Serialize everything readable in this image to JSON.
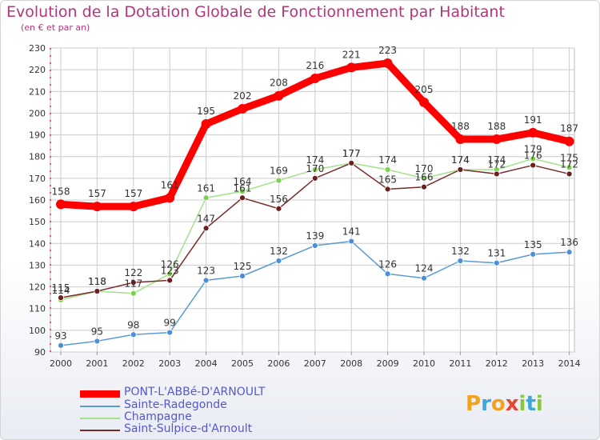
{
  "title": "Evolution de la Dotation Globale de Fonctionnement par Habitant",
  "subtitle": "(en € et par an)",
  "logo": {
    "letters": [
      "P",
      "r",
      "o",
      "x",
      "i",
      "t",
      "i"
    ],
    "colors": [
      "#f2a21c",
      "#3fa6db",
      "#f2a21c",
      "#e8462b",
      "#8cc63f",
      "#3fa6db",
      "#8cc63f"
    ]
  },
  "colors": {
    "title": "#b5357a",
    "axis_text": "#333333",
    "grid": "#cccccc",
    "axis_dash": "#cc3333",
    "legend_text": "#5558c9"
  },
  "chart_data": {
    "type": "line",
    "x": [
      "2000",
      "2001",
      "2002",
      "2003",
      "2004",
      "2005",
      "2006",
      "2007",
      "2008",
      "2009",
      "2010",
      "2011",
      "2012",
      "2013",
      "2014"
    ],
    "ylim": [
      90,
      230
    ],
    "yticks": [
      90,
      100,
      110,
      120,
      130,
      140,
      150,
      160,
      170,
      180,
      190,
      200,
      210,
      220,
      230
    ],
    "grid": true,
    "legend_placement": "bottom-left",
    "series": [
      {
        "name": "PONT-L'ABBé-D'ARNOULT",
        "color": "#ff0000",
        "marker": "#ff0000",
        "values": [
          158,
          157,
          157,
          161,
          195,
          202,
          208,
          216,
          221,
          223,
          205,
          188,
          188,
          191,
          187
        ],
        "labels": [
          "158",
          "157",
          "157",
          "161",
          "195",
          "202",
          "208",
          "216",
          "221",
          "223",
          "205",
          "188",
          "188",
          "191",
          "187"
        ]
      },
      {
        "name": "Sainte-Radegonde",
        "color": "#5b9bd5",
        "marker": "#4a90d9",
        "values": [
          93,
          95,
          98,
          99,
          123,
          125,
          132,
          139,
          141,
          126,
          124,
          132,
          131,
          135,
          136
        ],
        "labels": [
          "93",
          "95",
          "98",
          "99",
          "123",
          "125",
          "132",
          "139",
          "141",
          "126",
          "124",
          "132",
          "131",
          "135",
          "136"
        ]
      },
      {
        "name": "Champagne",
        "color": "#a3e28a",
        "marker": "#7cd14f",
        "values": [
          114,
          118,
          117,
          126,
          161,
          164,
          169,
          174,
          177,
          174,
          170,
          174,
          174,
          179,
          175
        ],
        "labels": [
          "114",
          "118",
          "117",
          "126",
          "161",
          "164",
          "169",
          "174",
          "177",
          "174",
          "170",
          "174",
          "174",
          "179",
          "175"
        ]
      },
      {
        "name": "Saint-Sulpice-d'Arnoult",
        "color": "#7a2a2a",
        "marker": "#6b1f1f",
        "values": [
          115,
          118,
          122,
          123,
          147,
          161,
          156,
          170,
          177,
          165,
          166,
          174,
          172,
          176,
          172
        ],
        "labels": [
          "115",
          "118",
          "122",
          "123",
          "147",
          "161",
          "156",
          "170",
          "177",
          "165",
          "166",
          "174",
          "172",
          "176",
          "172"
        ]
      }
    ]
  }
}
